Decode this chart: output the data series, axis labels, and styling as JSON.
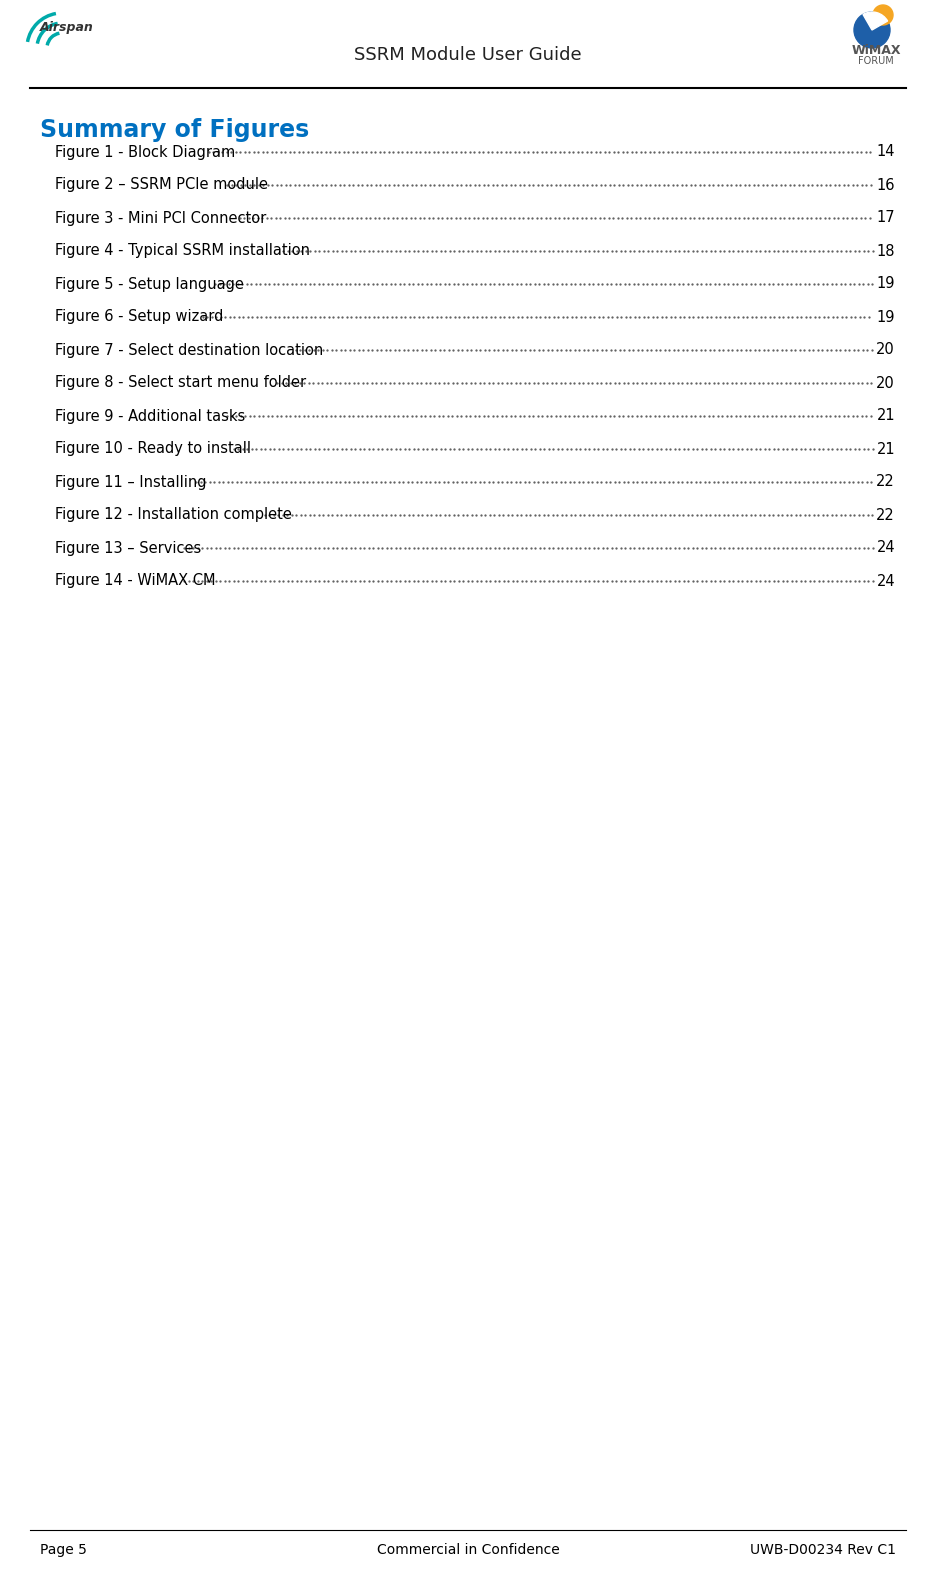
{
  "page_title": "SSRM Module User Guide",
  "section_title": "Summary of Figures",
  "section_title_color": "#0070C0",
  "figures": [
    {
      "label": "Figure 1 - Block Diagram",
      "page": "14"
    },
    {
      "label": "Figure 2 – SSRM PCIe module",
      "page": "16"
    },
    {
      "label": "Figure 3 - Mini PCI Connector",
      "page": "17"
    },
    {
      "label": "Figure 4 - Typical SSRM installation",
      "page": "18"
    },
    {
      "label": "Figure 5 - Setup language",
      "page": "19"
    },
    {
      "label": "Figure 6 - Setup wizard",
      "page": "19"
    },
    {
      "label": "Figure 7 - Select destination location",
      "page": "20"
    },
    {
      "label": "Figure 8 - Select start menu folder",
      "page": "20"
    },
    {
      "label": "Figure 9 - Additional tasks",
      "page": "21"
    },
    {
      "label": "Figure 10 - Ready to install",
      "page": "21"
    },
    {
      "label": "Figure 11 – Installing",
      "page": "22"
    },
    {
      "label": "Figure 12 - Installation complete",
      "page": "22"
    },
    {
      "label": "Figure 13 – Services",
      "page": "24"
    },
    {
      "label": "Figure 14 - WiMAX CM",
      "page": "24"
    }
  ],
  "footer_left": "Page 5",
  "footer_center": "Commercial in Confidence",
  "footer_right": "UWB-D00234 Rev C1",
  "bg_color": "#ffffff",
  "text_color": "#000000",
  "header_line_color": "#000000",
  "footer_line_color": "#000000"
}
